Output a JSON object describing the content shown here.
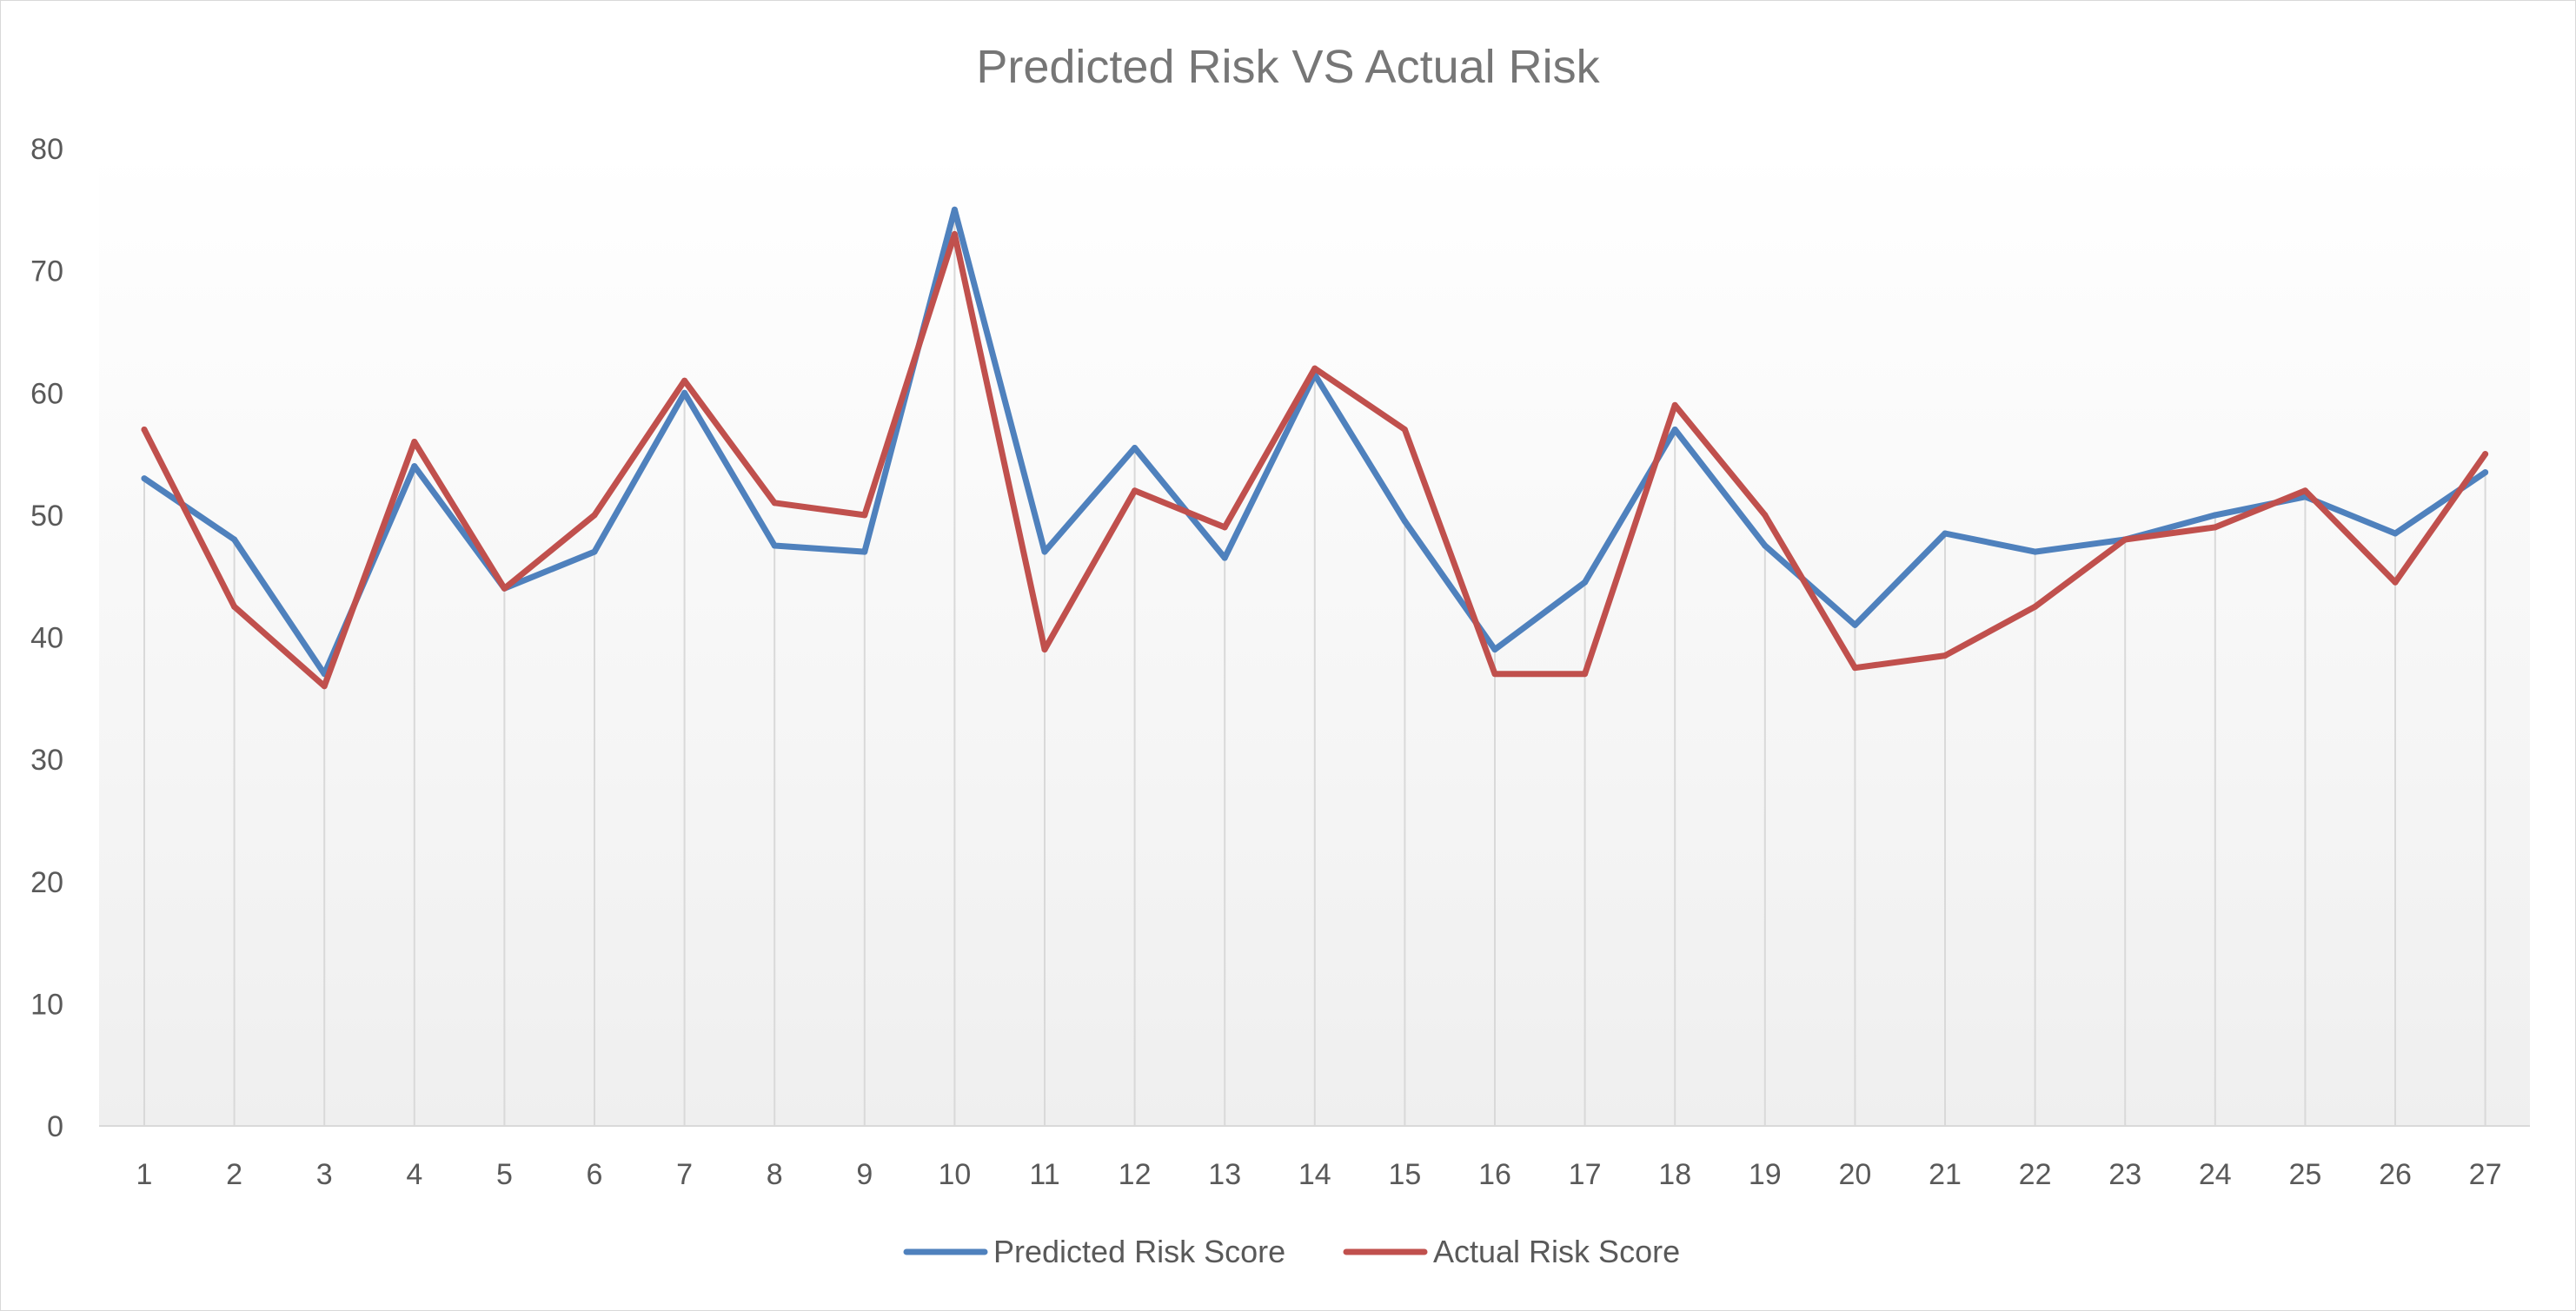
{
  "chart_data": {
    "type": "line",
    "title": "Predicted Risk VS Actual Risk",
    "xlabel": "",
    "ylabel": "",
    "ylim": [
      0,
      80
    ],
    "yticks": [
      "0",
      "10",
      "20",
      "30",
      "40",
      "50",
      "60",
      "70",
      "80"
    ],
    "categories": [
      "1",
      "2",
      "3",
      "4",
      "5",
      "6",
      "7",
      "8",
      "9",
      "10",
      "11",
      "12",
      "13",
      "14",
      "15",
      "16",
      "17",
      "18",
      "19",
      "20",
      "21",
      "22",
      "23",
      "24",
      "25",
      "26",
      "27"
    ],
    "grid": "vertical lines at categories",
    "legend_position": "bottom",
    "series": [
      {
        "name": "Predicted Risk Score",
        "color": "#4f81bd",
        "values": [
          53,
          48,
          37,
          54,
          44,
          47,
          60,
          47.5,
          47,
          75,
          47,
          55.5,
          46.5,
          61.5,
          49.5,
          39,
          44.5,
          57,
          47.5,
          41,
          48.5,
          47,
          48,
          50,
          51.5,
          48.5,
          53.5
        ]
      },
      {
        "name": "Actual Risk Score",
        "color": "#c0504d",
        "values": [
          57,
          42.5,
          36,
          56,
          44,
          50,
          61,
          51,
          50,
          73,
          39,
          52,
          49,
          62,
          57,
          37,
          37,
          59,
          50,
          37.5,
          38.5,
          42.5,
          48,
          49,
          52,
          44.5,
          55
        ]
      }
    ]
  }
}
